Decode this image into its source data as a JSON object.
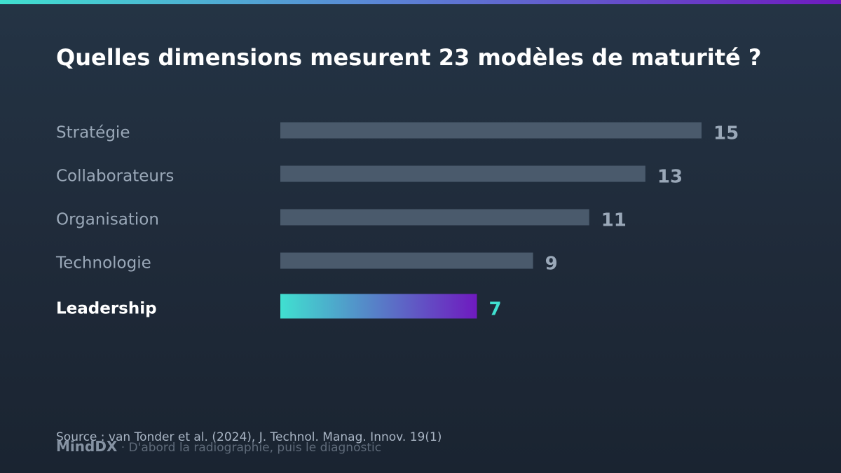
{
  "title": "Quelles dimensions mesurent 23 modèles de maturité ?",
  "colors": {
    "bar_default": "#4a5a6c",
    "label_default": "#9aa8b8",
    "value_default": "#9aa8b8",
    "label_highlight": "#ffffff",
    "value_highlight": "#40e0d0",
    "highlight_gradient_start": "#40e0d0",
    "highlight_gradient_end": "#6f1abf"
  },
  "chart_data": {
    "type": "bar",
    "orientation": "horizontal",
    "categories": [
      "Stratégie",
      "Collaborateurs",
      "Organisation",
      "Technologie",
      "Leadership"
    ],
    "values": [
      15,
      13,
      11,
      9,
      7
    ],
    "highlight": "Leadership",
    "title": "Quelles dimensions mesurent 23 modèles de maturité ?",
    "xlabel": "",
    "ylabel": "",
    "xlim": [
      0,
      15
    ],
    "grid": false,
    "legend": "none"
  },
  "source": "Source : van Tonder et al. (2024), J. Technol. Manag. Innov. 19(1)",
  "footer": {
    "brand": "MindDX",
    "tagline": " · D'abord la radiographie, puis le diagnostic"
  }
}
